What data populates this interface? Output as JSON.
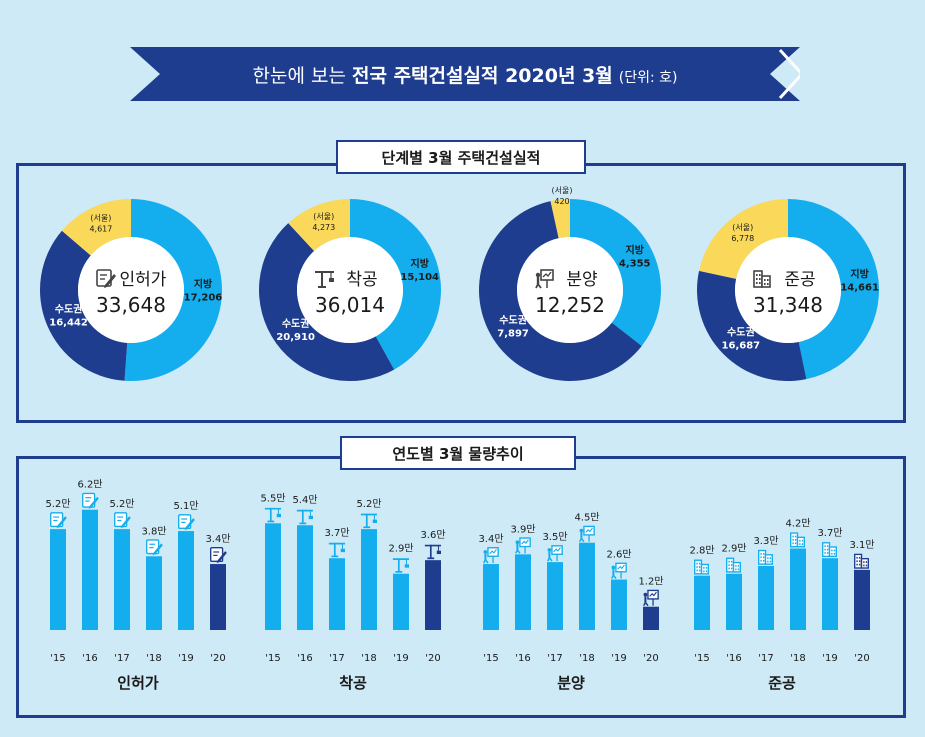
{
  "banner": {
    "title_prefix": "한눈에 보는 ",
    "title_main": "전국 주택건설실적 2020년 3월",
    "unit": "(단위: 호)"
  },
  "section1": {
    "title": "단계별 3월 주택건설실적"
  },
  "section2": {
    "title": "연도별 3월 물량추이"
  },
  "colors": {
    "dark": "#1e3d8f",
    "light": "#14aeef",
    "seoul": "#f9d85a",
    "bg": "#cfeaf7"
  },
  "chart_data": [
    {
      "type": "pie",
      "stage": "인허가",
      "icon": "permit-icon",
      "total": "33,648",
      "slices": [
        {
          "label": "지방",
          "value": 17206,
          "text": "17,206"
        },
        {
          "label": "수도권",
          "value": 16442,
          "text": "16,442"
        },
        {
          "label": "(서울)",
          "value": 4617,
          "text": "4,617"
        }
      ]
    },
    {
      "type": "pie",
      "stage": "착공",
      "icon": "crane-icon",
      "total": "36,014",
      "slices": [
        {
          "label": "지방",
          "value": 15104,
          "text": "15,104"
        },
        {
          "label": "수도권",
          "value": 20910,
          "text": "20,910"
        },
        {
          "label": "(서울)",
          "value": 4273,
          "text": "4,273"
        }
      ]
    },
    {
      "type": "pie",
      "stage": "분양",
      "icon": "presentation-icon",
      "total": "12,252",
      "slices": [
        {
          "label": "지방",
          "value": 4355,
          "text": "4,355"
        },
        {
          "label": "수도권",
          "value": 7897,
          "text": "7,897"
        },
        {
          "label": "(서울)",
          "value": 420,
          "text": "420"
        }
      ]
    },
    {
      "type": "pie",
      "stage": "준공",
      "icon": "building-icon",
      "total": "31,348",
      "slices": [
        {
          "label": "지방",
          "value": 14661,
          "text": "14,661"
        },
        {
          "label": "수도권",
          "value": 16687,
          "text": "16,687"
        },
        {
          "label": "(서울)",
          "value": 6778,
          "text": "6,778"
        }
      ]
    },
    {
      "type": "bar",
      "title": "인허가",
      "icon": "permit-icon",
      "categories": [
        "'15",
        "'16",
        "'17",
        "'18",
        "'19",
        "'20"
      ],
      "values": [
        5.2,
        6.2,
        5.2,
        3.8,
        5.1,
        3.4
      ],
      "labels": [
        "5.2만",
        "6.2만",
        "5.2만",
        "3.8만",
        "5.1만",
        "3.4만"
      ]
    },
    {
      "type": "bar",
      "title": "착공",
      "icon": "crane-icon",
      "categories": [
        "'15",
        "'16",
        "'17",
        "'18",
        "'19",
        "'20"
      ],
      "values": [
        5.5,
        5.4,
        3.7,
        5.2,
        2.9,
        3.6
      ],
      "labels": [
        "5.5만",
        "5.4만",
        "3.7만",
        "5.2만",
        "2.9만",
        "3.6만"
      ]
    },
    {
      "type": "bar",
      "title": "분양",
      "icon": "presentation-icon",
      "categories": [
        "'15",
        "'16",
        "'17",
        "'18",
        "'19",
        "'20"
      ],
      "values": [
        3.4,
        3.9,
        3.5,
        4.5,
        2.6,
        1.2
      ],
      "labels": [
        "3.4만",
        "3.9만",
        "3.5만",
        "4.5만",
        "2.6만",
        "1.2만"
      ]
    },
    {
      "type": "bar",
      "title": "준공",
      "icon": "building-icon",
      "categories": [
        "'15",
        "'16",
        "'17",
        "'18",
        "'19",
        "'20"
      ],
      "values": [
        2.8,
        2.9,
        3.3,
        4.2,
        3.7,
        3.1
      ],
      "labels": [
        "2.8만",
        "2.9만",
        "3.3만",
        "4.2만",
        "3.7만",
        "3.1만"
      ]
    }
  ]
}
